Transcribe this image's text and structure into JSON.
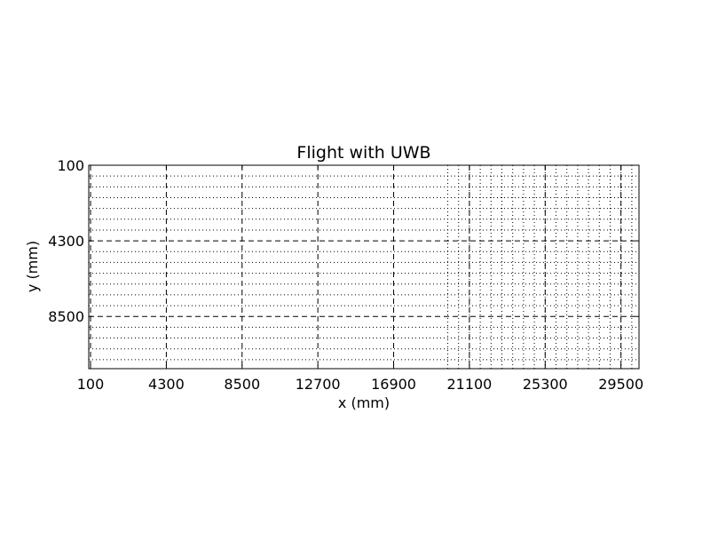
{
  "chart_data": {
    "type": "grid",
    "title": "Flight with UWB",
    "xlabel": "x (mm)",
    "ylabel": "y (mm)",
    "xlim": [
      0,
      30500
    ],
    "ylim": [
      100,
      11400
    ],
    "y_inverted": true,
    "x_ticks": [
      100,
      4300,
      8500,
      12700,
      16900,
      21100,
      25300,
      29500
    ],
    "y_ticks": [
      100,
      4300,
      8500
    ],
    "major_dashed_x": [
      100,
      4300,
      8500,
      12700,
      16900,
      21100,
      25300,
      29500
    ],
    "major_dashed_y": [
      100,
      4300,
      8500
    ],
    "minor_dotted_y": [
      700,
      1300,
      1900,
      2500,
      3100,
      3700,
      4900,
      5500,
      6100,
      6700,
      7300,
      7900,
      9100,
      9700,
      10300,
      10900
    ],
    "dotted_x_from": 19900,
    "dotted_x_to": 30100,
    "dotted_x_step": 600
  }
}
